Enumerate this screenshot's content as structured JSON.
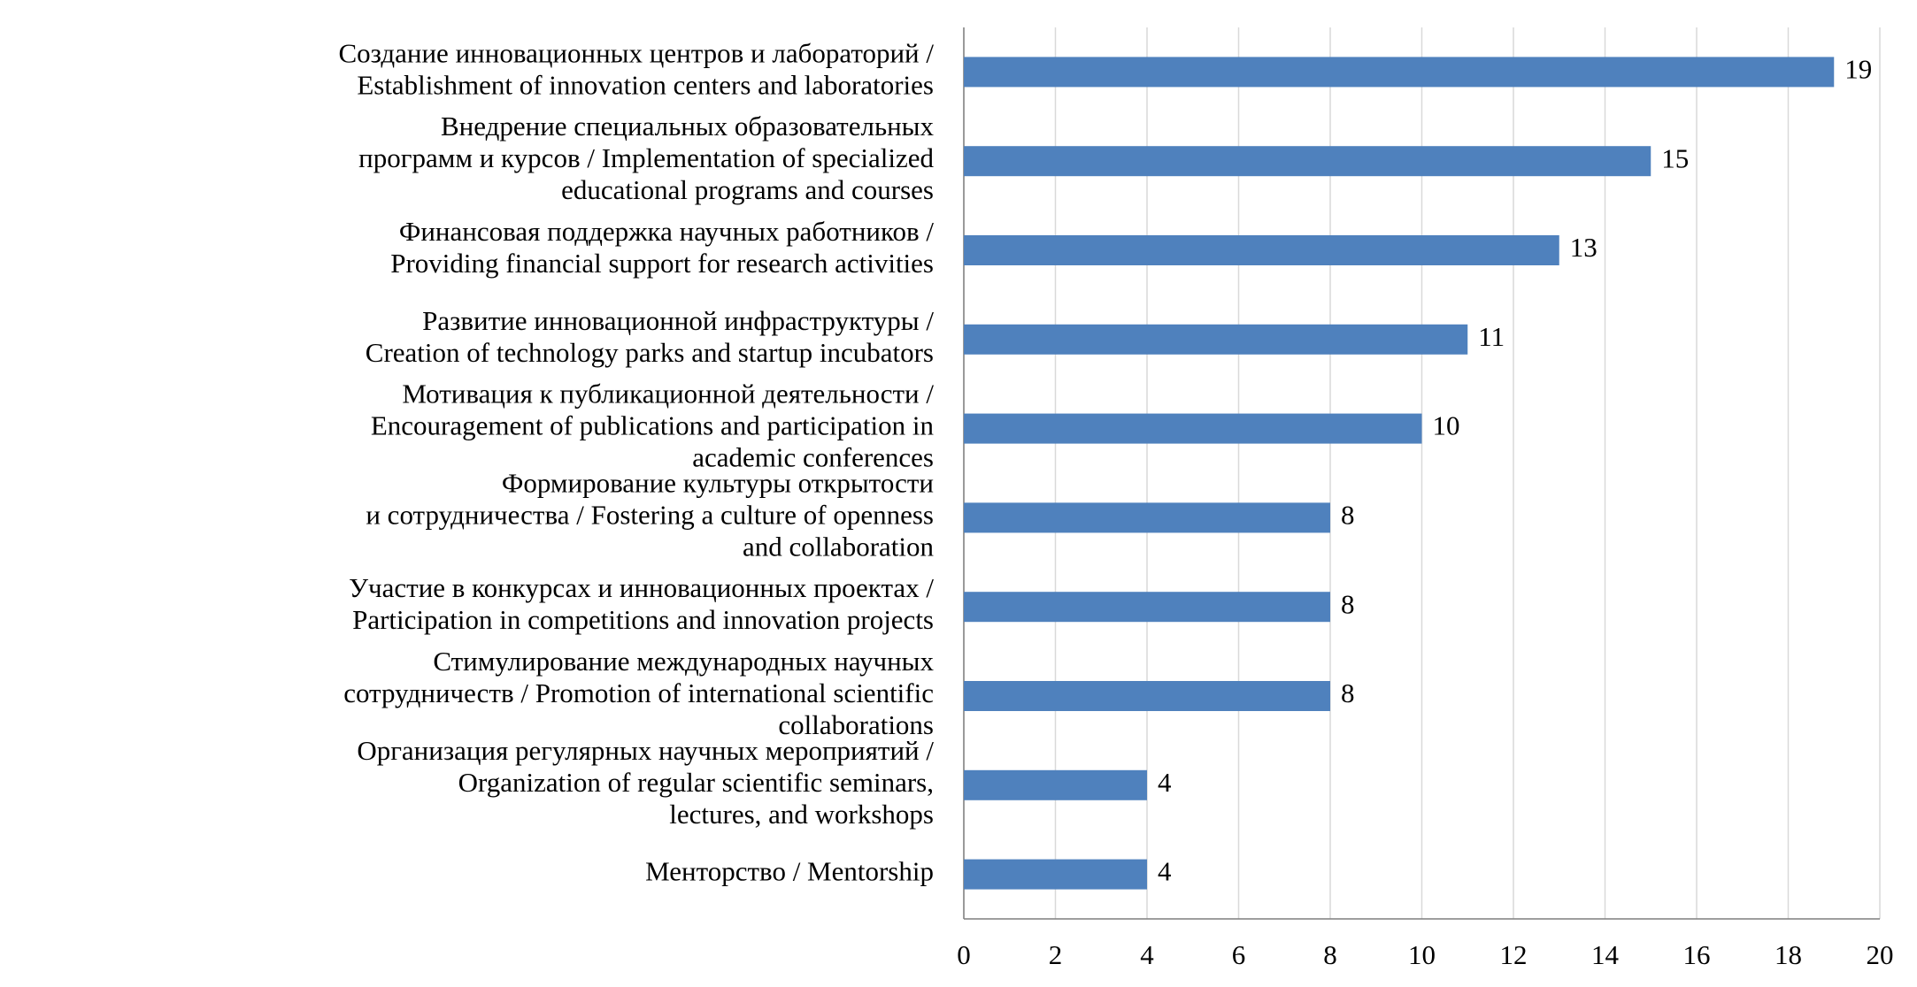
{
  "chart_data": {
    "type": "bar",
    "orientation": "horizontal",
    "categories": [
      "Создание инновационных центров и лабораторий /\nEstablishment of innovation centers and laboratories",
      "Внедрение специальных образовательных\nпрограмм и курсов / Implementation of specialized\neducational programs and courses",
      "Финансовая поддержка научных работников /\nProviding financial support for research activities",
      "Развитие инновационной инфраструктуры /\nCreation of technology parks and startup incubators",
      "Мотивация к публикационной деятельности /\nEncouragement of publications and participation in\nacademic conferences",
      "Формирование культуры открытости\nи сотрудничества / Fostering a culture of openness\nand collaboration",
      "Участие в конкурсах и инновационных проектах /\nParticipation in competitions and innovation projects",
      "Стимулирование международных научных\nсотрудничеств / Promotion of international scientific\ncollaborations",
      "Организация регулярных научных мероприятий /\nOrganization of regular scientific seminars,\nlectures, and workshops",
      "Менторство / Mentorship"
    ],
    "values": [
      19,
      15,
      13,
      11,
      10,
      8,
      8,
      8,
      4,
      4
    ],
    "color": "#4f81bd",
    "xlim": [
      0,
      20
    ],
    "xticks": [
      0,
      2,
      4,
      6,
      8,
      10,
      12,
      14,
      16,
      18,
      20
    ],
    "grid": true
  }
}
